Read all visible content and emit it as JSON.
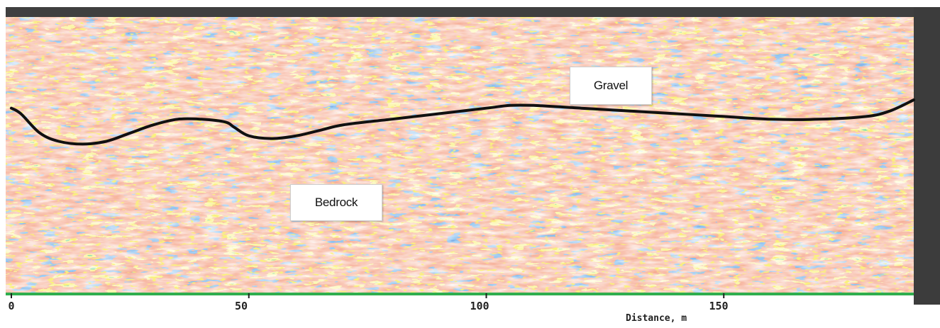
{
  "chart_data": {
    "type": "heatmap",
    "title": "",
    "xlabel": "Distance, m",
    "ylabel": "",
    "xlim": [
      0,
      190
    ],
    "x_ticks": [
      "0",
      "50",
      "100",
      "150"
    ],
    "x_tick_values": [
      0,
      50,
      100,
      150
    ],
    "annotations": [
      {
        "text": "Gravel"
      },
      {
        "text": "Bedrock"
      }
    ],
    "interface_line": {
      "name": "",
      "x": [
        0,
        2,
        6,
        10,
        15,
        20,
        25,
        30,
        35,
        40,
        45,
        47,
        50,
        55,
        60,
        65,
        70,
        80,
        90,
        100,
        105,
        110,
        120,
        130,
        140,
        150,
        160,
        170,
        180,
        185,
        190
      ],
      "depth_fraction": [
        0.33,
        0.35,
        0.42,
        0.45,
        0.46,
        0.45,
        0.42,
        0.39,
        0.37,
        0.37,
        0.38,
        0.4,
        0.43,
        0.44,
        0.43,
        0.41,
        0.39,
        0.37,
        0.35,
        0.33,
        0.32,
        0.32,
        0.33,
        0.34,
        0.35,
        0.36,
        0.37,
        0.37,
        0.36,
        0.34,
        0.3
      ]
    },
    "colormap": [
      "#2a55c0",
      "#1f6fd6",
      "#e8583a",
      "#f2963a",
      "#f4e23c",
      "#2fae4e"
    ],
    "grid": false,
    "legend": "none"
  }
}
